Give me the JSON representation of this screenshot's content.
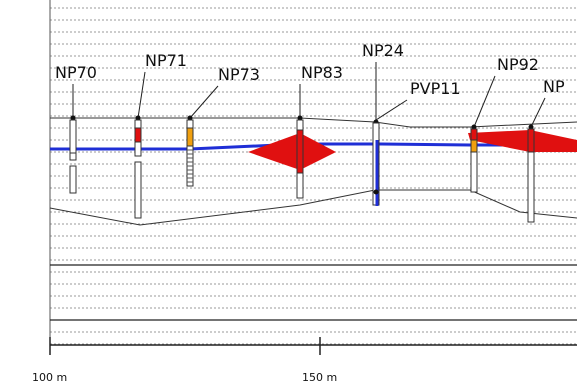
{
  "scale": {
    "ticks": [
      {
        "value": 100,
        "label": "100 m"
      },
      {
        "value": 150,
        "label": "150 m"
      }
    ]
  },
  "wells": [
    {
      "id": "NP70",
      "label": "NP70"
    },
    {
      "id": "NP71",
      "label": "NP71"
    },
    {
      "id": "NP73",
      "label": "NP73"
    },
    {
      "id": "NP83",
      "label": "NP83"
    },
    {
      "id": "NP24",
      "label": "NP24"
    },
    {
      "id": "PVP11",
      "label": "PVP11"
    },
    {
      "id": "NP92",
      "label": "NP92"
    },
    {
      "id": "NP_partial",
      "label": "NP"
    }
  ],
  "colors": {
    "water_table": "#1f2fd6",
    "contamination": "#e01010",
    "screen_orange": "#f0a010",
    "grid": "#9a9a9a",
    "ground_line": "#333333",
    "casing_fill": "#ffffff",
    "casing_stroke": "#333333"
  }
}
